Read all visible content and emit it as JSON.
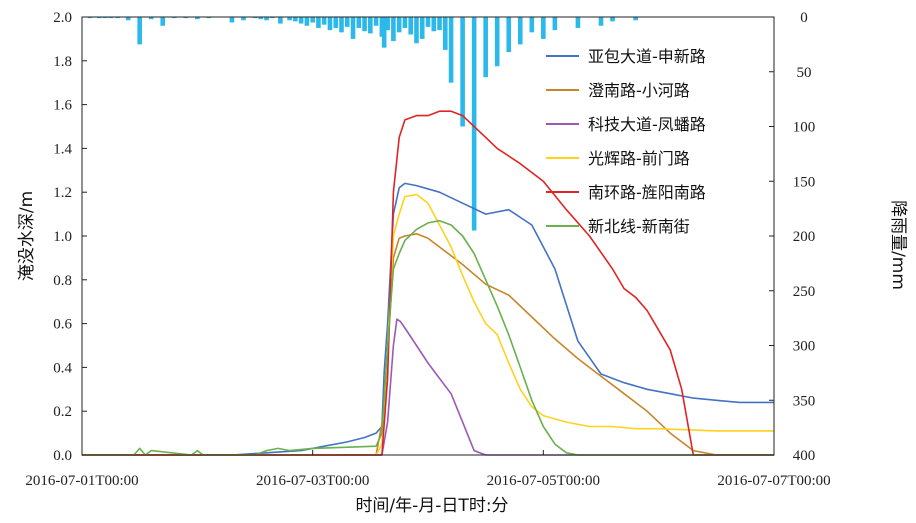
{
  "chart_data": {
    "type": "line",
    "xlabel": "时间/年-月-日T时:分",
    "ylabel": "淹没水深/m",
    "y2label": "降雨量/mm",
    "x_ticks": [
      "2016-07-01T00:00",
      "2016-07-03T00:00",
      "2016-07-05T00:00",
      "2016-07-07T00:00"
    ],
    "xlim_days": [
      0,
      6
    ],
    "ylim": [
      0,
      2.0
    ],
    "y_ticks": [
      "0.0",
      "0.2",
      "0.4",
      "0.6",
      "0.8",
      "1.0",
      "1.2",
      "1.4",
      "1.6",
      "1.8",
      "2.0"
    ],
    "y2lim": [
      0,
      400
    ],
    "y2_inverted": true,
    "y2_ticks": [
      "0",
      "50",
      "100",
      "150",
      "200",
      "250",
      "300",
      "350",
      "400"
    ],
    "legend_position": "top-right",
    "grid": false,
    "colors": {
      "rainfall": "#2bb8ea",
      "axis": "#222222"
    },
    "rainfall": {
      "name": "降雨量",
      "x": [
        0.07,
        0.15,
        0.2,
        0.25,
        0.31,
        0.4,
        0.5,
        0.6,
        0.7,
        0.8,
        0.9,
        1.0,
        1.1,
        1.3,
        1.4,
        1.5,
        1.55,
        1.6,
        1.65,
        1.72,
        1.8,
        1.85,
        1.9,
        1.95,
        2.0,
        2.05,
        2.1,
        2.15,
        2.2,
        2.25,
        2.3,
        2.35,
        2.4,
        2.45,
        2.5,
        2.55,
        2.6,
        2.62,
        2.65,
        2.7,
        2.75,
        2.8,
        2.85,
        2.9,
        2.95,
        3.0,
        3.05,
        3.1,
        3.15,
        3.2,
        3.3,
        3.4,
        3.5,
        3.6,
        3.7,
        3.8,
        3.9,
        4.0,
        4.1,
        4.3,
        4.5,
        4.6,
        4.8
      ],
      "values": [
        1,
        1,
        1,
        1,
        1,
        3,
        25,
        2,
        8,
        1,
        1,
        2,
        1,
        5,
        3,
        1,
        2,
        3,
        1,
        6,
        3,
        4,
        6,
        8,
        5,
        10,
        7,
        12,
        10,
        14,
        9,
        20,
        10,
        13,
        15,
        8,
        18,
        28,
        12,
        22,
        14,
        10,
        16,
        24,
        20,
        9,
        13,
        12,
        30,
        60,
        100,
        195,
        55,
        45,
        32,
        25,
        14,
        20,
        12,
        10,
        8,
        4,
        3
      ]
    },
    "series": [
      {
        "name": "亚包大道-申新路",
        "color": "#4472c4",
        "x": [
          0,
          1.3,
          1.6,
          1.9,
          2.1,
          2.3,
          2.45,
          2.55,
          2.6,
          2.62,
          2.65,
          2.7,
          2.75,
          2.8,
          2.9,
          3.1,
          3.3,
          3.5,
          3.7,
          3.9,
          4.1,
          4.3,
          4.5,
          4.7,
          4.9,
          5.1,
          5.3,
          5.5,
          5.7,
          6.0
        ],
        "values": [
          0,
          0,
          0.01,
          0.02,
          0.04,
          0.06,
          0.08,
          0.1,
          0.13,
          0.38,
          0.6,
          1.1,
          1.22,
          1.24,
          1.23,
          1.2,
          1.15,
          1.1,
          1.12,
          1.05,
          0.85,
          0.52,
          0.37,
          0.33,
          0.3,
          0.28,
          0.26,
          0.25,
          0.24,
          0.24
        ]
      },
      {
        "name": "澄南路-小河路",
        "color": "#c8852a",
        "x": [
          0,
          2.55,
          2.62,
          2.7,
          2.75,
          2.8,
          2.9,
          3.0,
          3.1,
          3.3,
          3.5,
          3.7,
          3.9,
          4.1,
          4.3,
          4.5,
          4.7,
          4.9,
          5.1,
          5.3,
          5.5,
          6.0
        ],
        "values": [
          0,
          0,
          0.2,
          0.9,
          0.99,
          1.0,
          1.01,
          0.99,
          0.95,
          0.87,
          0.78,
          0.73,
          0.63,
          0.53,
          0.44,
          0.36,
          0.28,
          0.2,
          0.1,
          0.02,
          0,
          0
        ]
      },
      {
        "name": "科技大道-凤蟠路",
        "color": "#9b59b6",
        "x": [
          0,
          2.6,
          2.65,
          2.7,
          2.73,
          2.76,
          2.8,
          2.9,
          3.0,
          3.1,
          3.2,
          3.3,
          3.4,
          3.5,
          6.0
        ],
        "values": [
          0,
          0,
          0.15,
          0.5,
          0.62,
          0.61,
          0.58,
          0.5,
          0.42,
          0.35,
          0.28,
          0.15,
          0.02,
          0,
          0
        ]
      },
      {
        "name": "光辉路-前门路",
        "color": "#ffd21f",
        "x": [
          0,
          2.55,
          2.6,
          2.65,
          2.7,
          2.75,
          2.8,
          2.9,
          3.0,
          3.1,
          3.2,
          3.3,
          3.4,
          3.5,
          3.6,
          3.7,
          3.8,
          3.9,
          4.0,
          4.2,
          4.4,
          4.6,
          4.8,
          5.0,
          5.5,
          6.0
        ],
        "values": [
          0,
          0,
          0.05,
          0.5,
          1.0,
          1.1,
          1.18,
          1.19,
          1.15,
          1.05,
          0.95,
          0.82,
          0.7,
          0.6,
          0.55,
          0.42,
          0.3,
          0.22,
          0.18,
          0.15,
          0.13,
          0.13,
          0.12,
          0.12,
          0.11,
          0.11
        ]
      },
      {
        "name": "南环路-旌阳南路",
        "color": "#e02424",
        "x": [
          0,
          2.6,
          2.65,
          2.7,
          2.75,
          2.8,
          2.9,
          3.0,
          3.1,
          3.2,
          3.3,
          3.4,
          3.5,
          3.6,
          3.8,
          4.0,
          4.2,
          4.4,
          4.6,
          4.7,
          4.8,
          4.9,
          5.0,
          5.1,
          5.2,
          5.3,
          6.0
        ],
        "values": [
          0,
          0,
          0.35,
          1.2,
          1.45,
          1.53,
          1.55,
          1.55,
          1.57,
          1.57,
          1.55,
          1.5,
          1.45,
          1.4,
          1.33,
          1.25,
          1.12,
          1.0,
          0.85,
          0.76,
          0.72,
          0.66,
          0.57,
          0.48,
          0.3,
          0,
          0
        ]
      },
      {
        "name": "新北线-新南街",
        "color": "#6ab04c",
        "x": [
          0,
          0.45,
          0.5,
          0.55,
          0.6,
          0.95,
          1.0,
          1.05,
          1.1,
          1.5,
          1.6,
          1.7,
          1.8,
          2.0,
          2.55,
          2.6,
          2.65,
          2.7,
          2.75,
          2.8,
          2.9,
          3.0,
          3.1,
          3.2,
          3.3,
          3.4,
          3.5,
          3.6,
          3.7,
          3.8,
          3.9,
          4.0,
          4.1,
          4.2,
          4.3,
          6.0
        ],
        "values": [
          0,
          0,
          0.03,
          0,
          0.02,
          0,
          0.02,
          0,
          0,
          0,
          0.02,
          0.03,
          0.02,
          0.03,
          0.04,
          0.1,
          0.5,
          0.85,
          0.92,
          0.98,
          1.03,
          1.06,
          1.07,
          1.05,
          1.0,
          0.92,
          0.8,
          0.68,
          0.55,
          0.4,
          0.25,
          0.13,
          0.05,
          0.01,
          0,
          0
        ]
      }
    ]
  }
}
